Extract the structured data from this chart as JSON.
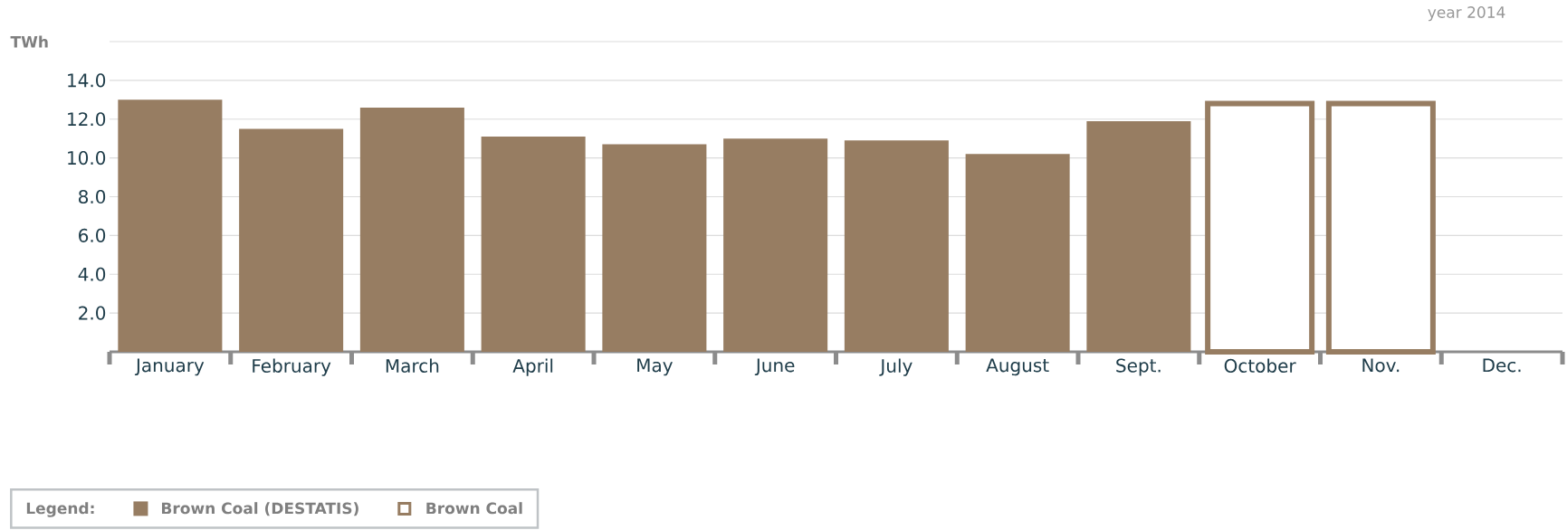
{
  "chart_data": {
    "type": "bar",
    "ylabel": "TWh",
    "legend_title": "Legend:",
    "annotations": [
      "year 2014"
    ],
    "categories": [
      "January",
      "February",
      "March",
      "April",
      "May",
      "June",
      "July",
      "August",
      "Sept.",
      "October",
      "Nov.",
      "Dec."
    ],
    "series": [
      {
        "name": "Brown Coal (DESTATIS)",
        "color": "#977d62",
        "values": [
          13.0,
          11.5,
          12.6,
          11.1,
          10.7,
          11.0,
          10.9,
          10.2,
          11.9,
          null,
          null,
          null
        ]
      },
      {
        "name": "Brown Coal",
        "color": "#977d62",
        "values": [
          null,
          null,
          null,
          null,
          null,
          null,
          null,
          null,
          null,
          12.8,
          12.8,
          null
        ]
      }
    ],
    "ylim": [
      0,
      16
    ],
    "yticks": [
      {
        "value": 2,
        "label": "2.0"
      },
      {
        "value": 4,
        "label": "4.0"
      },
      {
        "value": 6,
        "label": "6.0"
      },
      {
        "value": 8,
        "label": "8.0"
      },
      {
        "value": 10,
        "label": "10.0"
      },
      {
        "value": 12,
        "label": "12.0"
      },
      {
        "value": 14,
        "label": "14.0"
      },
      {
        "value": 16,
        "label": null
      }
    ],
    "grid": "y",
    "legend": "bottom left"
  }
}
